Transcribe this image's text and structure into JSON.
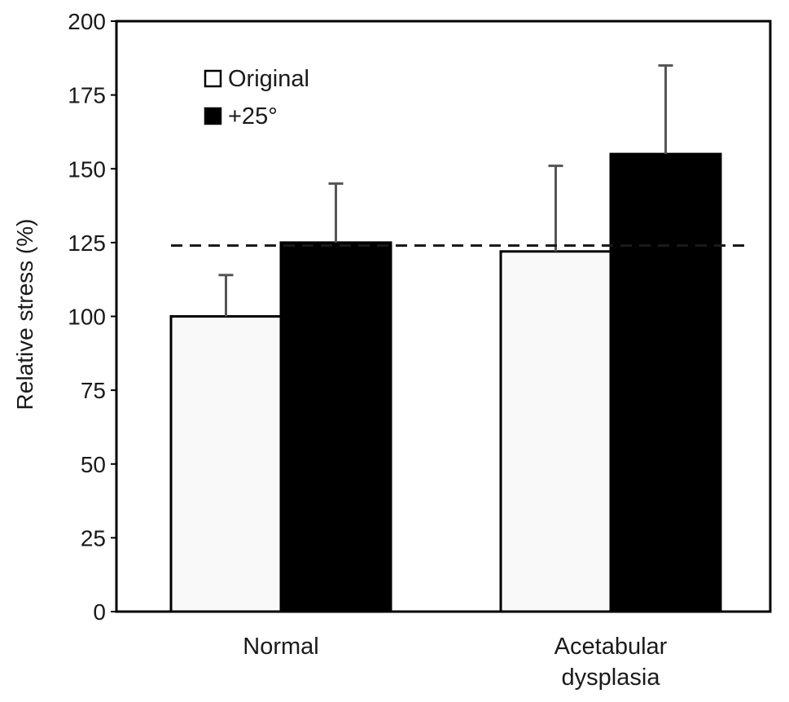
{
  "chart_data": {
    "type": "bar",
    "title": "",
    "xlabel": "",
    "ylabel": "Relative stress (%)",
    "ylim": [
      0,
      200
    ],
    "yticks": [
      "0",
      "25",
      "50",
      "75",
      "100",
      "125",
      "150",
      "175",
      "200"
    ],
    "categories": [
      [
        "Normal"
      ],
      [
        "Acetabular",
        "dysplasia"
      ]
    ],
    "series": [
      {
        "name": "Original",
        "values": [
          100,
          122
        ],
        "error": [
          14,
          29
        ],
        "color": "#f9f9f9"
      },
      {
        "name": "+25°",
        "values": [
          125,
          155
        ],
        "error": [
          20,
          30
        ],
        "color": "#000000"
      }
    ],
    "reference_line": {
      "value": 124,
      "style": "dashed"
    },
    "legend_position": "top-left",
    "grid": false
  }
}
